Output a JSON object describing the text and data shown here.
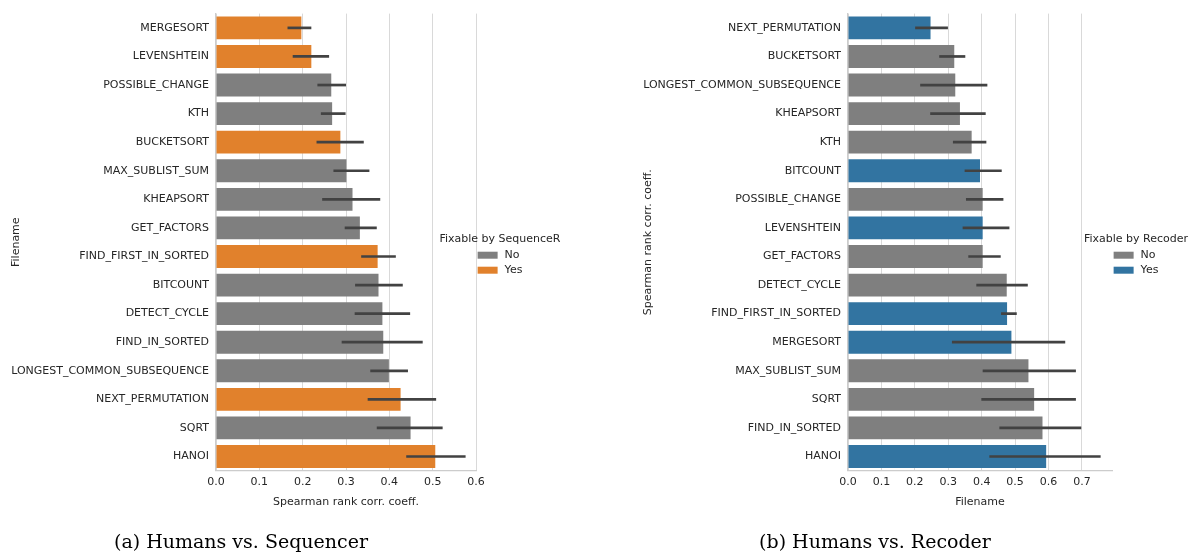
{
  "chart_data": [
    {
      "type": "bar",
      "orientation": "horizontal",
      "title": "(a) Humans vs. Sequencer",
      "xlabel": "Spearman rank corr. coeff.",
      "ylabel": "Filename",
      "legend_title": "Fixable by SequenceR",
      "categories": [
        "MERGESORT",
        "LEVENSHTEIN",
        "POSSIBLE_CHANGE",
        "KTH",
        "BUCKETSORT",
        "MAX_SUBLIST_SUM",
        "KHEAPSORT",
        "GET_FACTORS",
        "FIND_FIRST_IN_SORTED",
        "BITCOUNT",
        "DETECT_CYCLE",
        "FIND_IN_SORTED",
        "LONGEST_COMMON_SUBSEQUENCE",
        "NEXT_PERMUTATION",
        "SQRT",
        "HANOI"
      ],
      "series": [
        {
          "name": "No",
          "color": "#7f7f7f",
          "values": [
            null,
            null,
            0.266,
            0.268,
            null,
            0.301,
            0.315,
            0.332,
            null,
            0.375,
            0.384,
            0.386,
            0.399,
            null,
            0.449,
            null
          ],
          "errors": [
            null,
            null,
            [
              0.234,
              0.3
            ],
            [
              0.242,
              0.299
            ],
            null,
            [
              0.271,
              0.354
            ],
            [
              0.245,
              0.379
            ],
            [
              0.297,
              0.371
            ],
            null,
            [
              0.321,
              0.431
            ],
            [
              0.32,
              0.448
            ],
            [
              0.29,
              0.477
            ],
            [
              0.356,
              0.443
            ],
            null,
            [
              0.371,
              0.523
            ],
            null
          ]
        },
        {
          "name": "Yes",
          "color": "#e1812c",
          "values": [
            0.197,
            0.22,
            null,
            null,
            0.287,
            null,
            null,
            null,
            0.373,
            null,
            null,
            null,
            null,
            0.426,
            null,
            0.506
          ],
          "errors": [
            [
              0.165,
              0.22
            ],
            [
              0.177,
              0.261
            ],
            null,
            null,
            [
              0.232,
              0.341
            ],
            null,
            null,
            null,
            [
              0.335,
              0.415
            ],
            null,
            null,
            null,
            null,
            [
              0.35,
              0.508
            ],
            null,
            [
              0.439,
              0.576
            ]
          ]
        }
      ],
      "xlim": [
        0,
        0.6
      ],
      "xticks": [
        {
          "value": 0,
          "label": "0.0"
        },
        0.1,
        0.2,
        0.3,
        0.4,
        0.5,
        0.6
      ],
      "grid": "x",
      "legend": "right"
    },
    {
      "type": "bar",
      "orientation": "horizontal",
      "title": "(b) Humans vs. Recoder",
      "xlabel": "Filename",
      "ylabel": "Spearman rank corr. coeff.",
      "legend_title": "Fixable by Recoder",
      "categories": [
        "NEXT_PERMUTATION",
        "BUCKETSORT",
        "LONGEST_COMMON_SUBSEQUENCE",
        "KHEAPSORT",
        "KTH",
        "BITCOUNT",
        "POSSIBLE_CHANGE",
        "LEVENSHTEIN",
        "GET_FACTORS",
        "DETECT_CYCLE",
        "FIND_FIRST_IN_SORTED",
        "MERGESORT",
        "MAX_SUBLIST_SUM",
        "SQRT",
        "FIND_IN_SORTED",
        "HANOI"
      ],
      "series": [
        {
          "name": "No",
          "color": "#7f7f7f",
          "values": [
            null,
            0.318,
            0.321,
            0.335,
            0.37,
            null,
            0.403,
            null,
            0.403,
            0.475,
            null,
            null,
            0.54,
            0.557,
            0.582,
            null
          ],
          "errors": [
            null,
            [
              0.273,
              0.351
            ],
            [
              0.216,
              0.417
            ],
            [
              0.246,
              0.412
            ],
            [
              0.314,
              0.414
            ],
            null,
            [
              0.353,
              0.465
            ],
            null,
            [
              0.36,
              0.457
            ],
            [
              0.384,
              0.538
            ],
            null,
            null,
            [
              0.403,
              0.682
            ],
            [
              0.399,
              0.682
            ],
            [
              0.453,
              0.698
            ],
            null
          ]
        },
        {
          "name": "Yes",
          "color": "#3274a1",
          "values": [
            0.247,
            null,
            null,
            null,
            null,
            0.395,
            null,
            0.403,
            null,
            null,
            0.476,
            0.489,
            null,
            null,
            null,
            0.593
          ],
          "errors": [
            [
              0.201,
              0.299
            ],
            null,
            null,
            null,
            null,
            [
              0.349,
              0.46
            ],
            null,
            [
              0.343,
              0.483
            ],
            null,
            null,
            [
              0.458,
              0.505
            ],
            [
              0.311,
              0.65
            ],
            null,
            null,
            null,
            [
              0.423,
              0.756
            ]
          ]
        }
      ],
      "xlim": [
        0,
        0.79
      ],
      "xticks": [
        {
          "value": 0,
          "label": "0.0"
        },
        0.1,
        0.2,
        0.3,
        0.4,
        0.5,
        0.6,
        0.7
      ],
      "grid": "x",
      "legend": "right"
    }
  ]
}
